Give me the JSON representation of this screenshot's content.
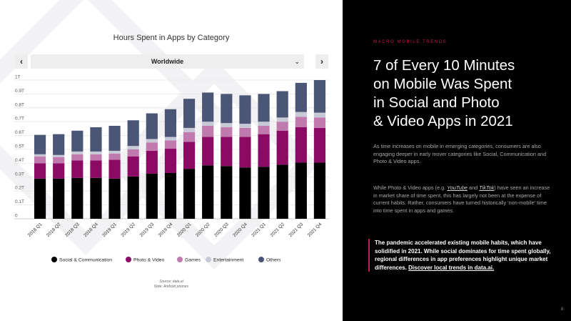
{
  "chart_data": {
    "type": "bar",
    "stacked": true,
    "title": "Hours Spent in Apps by Category",
    "categories": [
      "2018 Q1",
      "2018 Q2",
      "2018 Q3",
      "2018 Q4",
      "2019 Q1",
      "2019 Q2",
      "2019 Q3",
      "2019 Q4",
      "2020 Q1",
      "2020 Q2",
      "2020 Q3",
      "2020 Q4",
      "2021 Q1",
      "2021 Q2",
      "2021 Q3",
      "2021 Q4"
    ],
    "y_tick_labels": [
      "0",
      "0.1T",
      "0.2T",
      "0.3T",
      "0.4T",
      "0.5T",
      "0.6T",
      "0.7T",
      "0.8T",
      "0.9T",
      "1T"
    ],
    "ylim": [
      0,
      1.0
    ],
    "y_unit": "T",
    "grid": true,
    "legend_position": "bottom",
    "series": [
      {
        "name": "Social & Communication",
        "color": "#000000",
        "values": [
          0.29,
          0.29,
          0.295,
          0.295,
          0.29,
          0.305,
          0.325,
          0.33,
          0.36,
          0.385,
          0.38,
          0.37,
          0.375,
          0.39,
          0.405,
          0.405
        ]
      },
      {
        "name": "Photo & Video",
        "color": "#8b0a64",
        "values": [
          0.11,
          0.11,
          0.125,
          0.125,
          0.135,
          0.145,
          0.165,
          0.175,
          0.195,
          0.205,
          0.21,
          0.22,
          0.235,
          0.245,
          0.255,
          0.25
        ]
      },
      {
        "name": "Games",
        "color": "#c07aad",
        "values": [
          0.05,
          0.045,
          0.045,
          0.045,
          0.045,
          0.05,
          0.06,
          0.06,
          0.07,
          0.08,
          0.07,
          0.065,
          0.06,
          0.065,
          0.075,
          0.075
        ]
      },
      {
        "name": "Entertainment",
        "color": "#c7c9d6",
        "values": [
          0.015,
          0.015,
          0.02,
          0.02,
          0.02,
          0.025,
          0.025,
          0.025,
          0.03,
          0.03,
          0.03,
          0.03,
          0.03,
          0.03,
          0.035,
          0.035
        ]
      },
      {
        "name": "Others",
        "color": "#4b5575",
        "values": [
          0.14,
          0.15,
          0.15,
          0.175,
          0.18,
          0.185,
          0.185,
          0.2,
          0.21,
          0.21,
          0.21,
          0.205,
          0.2,
          0.19,
          0.21,
          0.235
        ]
      }
    ]
  },
  "controls": {
    "prev_label": "‹",
    "next_label": "›",
    "region_label": "Worldwide",
    "chevron": "⌄"
  },
  "source": {
    "line1": "Source: data.ai",
    "line2": "Note: Android phones"
  },
  "right": {
    "eyebrow": "MACRO MOBILE TRENDS",
    "headline_1": "7 of Every 10 Minutes",
    "headline_2": "on Mobile Was Spent",
    "headline_3": "in Social and Photo",
    "headline_4": "& Video Apps in 2021",
    "p1": "As time increases on mobile in emerging categories, consumers are also engaging deeper in early mover categories like Social, Communication and Photo & Video apps.",
    "p2_before": "While Photo & Video apps (e.g. ",
    "p2_link1": "YouTube",
    "p2_mid": " and ",
    "p2_link2": "TikTok",
    "p2_after": ") have seen an increase in market share of time spent, this has largely not been at the expense of current habits. Rather, consumers have turned historically 'non-mobile' time into time spent in apps and games.",
    "callout_text": "The pandemic accelerated existing mobile habits, which have solidified in 2021. While social dominates for time spent globally, regional differences in app preferences highlight unique market differences. ",
    "callout_cta": "Discover local trends in data.ai.",
    "page_number": "8"
  }
}
